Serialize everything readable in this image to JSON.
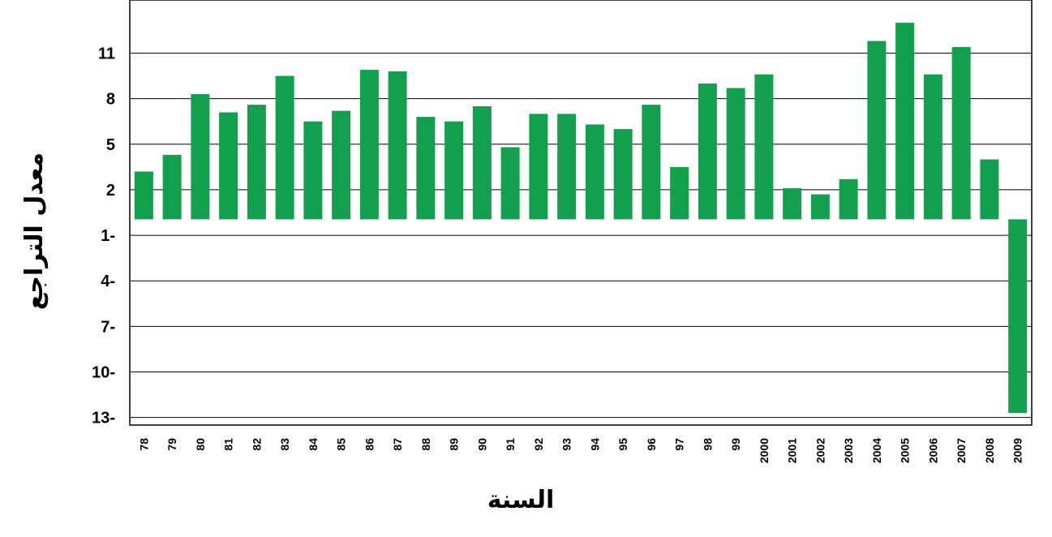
{
  "chart_data": {
    "type": "bar",
    "title": "",
    "xlabel": "السنة",
    "ylabel": "معدل التراجع",
    "bar_color": "#12a04f",
    "grid": true,
    "ylim": [
      -13.5,
      14.5
    ],
    "y_ticks": [
      {
        "value": 11,
        "label": "11"
      },
      {
        "value": 8,
        "label": "8"
      },
      {
        "value": 5,
        "label": "5"
      },
      {
        "value": 2,
        "label": "2"
      },
      {
        "value": -1,
        "label": "1-"
      },
      {
        "value": -4,
        "label": "4-"
      },
      {
        "value": -7,
        "label": "7-"
      },
      {
        "value": -10,
        "label": "10-"
      },
      {
        "value": -13,
        "label": "13-"
      }
    ],
    "categories": [
      "78",
      "79",
      "80",
      "81",
      "82",
      "83",
      "84",
      "85",
      "86",
      "87",
      "88",
      "89",
      "90",
      "91",
      "92",
      "93",
      "94",
      "95",
      "96",
      "97",
      "98",
      "99",
      "2000",
      "2001",
      "2002",
      "2003",
      "2004",
      "2005",
      "2006",
      "2007",
      "2008",
      "2009"
    ],
    "values": [
      3.2,
      4.3,
      8.3,
      7.1,
      7.6,
      9.5,
      6.5,
      7.2,
      9.9,
      9.8,
      6.8,
      6.5,
      7.5,
      4.8,
      7.0,
      7.0,
      6.3,
      6.0,
      7.6,
      3.5,
      9.0,
      8.7,
      9.6,
      2.1,
      1.7,
      2.7,
      11.8,
      13.0,
      9.6,
      11.4,
      4.0,
      -12.7
    ]
  }
}
